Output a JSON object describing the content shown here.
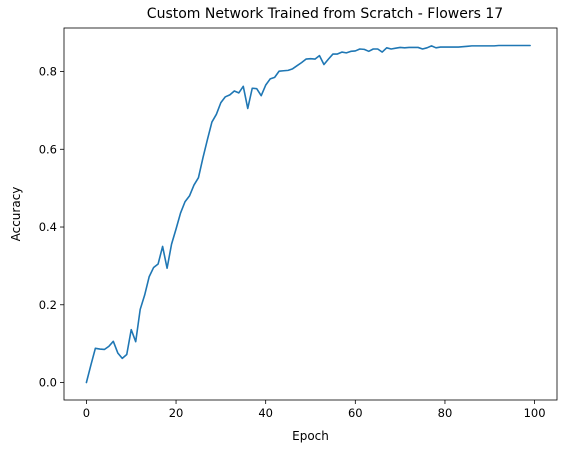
{
  "chart_data": {
    "type": "line",
    "title": "Custom Network Trained from Scratch - Flowers 17",
    "xlabel": "Epoch",
    "ylabel": "Accuracy",
    "xlim": [
      -5,
      105
    ],
    "ylim": [
      -0.045,
      0.912
    ],
    "xticks": [
      0,
      20,
      40,
      60,
      80,
      100
    ],
    "xtick_labels": [
      "0",
      "20",
      "40",
      "60",
      "80",
      "100"
    ],
    "yticks": [
      0.0,
      0.2,
      0.4,
      0.6,
      0.8
    ],
    "ytick_labels": [
      "0.0",
      "0.2",
      "0.4",
      "0.6",
      "0.8"
    ],
    "grid": false,
    "series": [
      {
        "color": "#1f77b4",
        "x": [
          0,
          1,
          2,
          3,
          4,
          5,
          6,
          7,
          8,
          9,
          10,
          11,
          12,
          13,
          14,
          15,
          16,
          17,
          18,
          19,
          20,
          21,
          22,
          23,
          24,
          25,
          26,
          27,
          28,
          29,
          30,
          31,
          32,
          33,
          34,
          35,
          36,
          37,
          38,
          39,
          40,
          41,
          42,
          43,
          44,
          45,
          46,
          47,
          48,
          49,
          50,
          51,
          52,
          53,
          54,
          55,
          56,
          57,
          58,
          59,
          60,
          61,
          62,
          63,
          64,
          65,
          66,
          67,
          68,
          69,
          70,
          71,
          72,
          73,
          74,
          75,
          76,
          77,
          78,
          79,
          80,
          81,
          82,
          83,
          84,
          85,
          86,
          87,
          88,
          89,
          90,
          91,
          92,
          93,
          94,
          95,
          96,
          97,
          98,
          99
        ],
        "y": [
          0.0,
          0.045,
          0.088,
          0.086,
          0.085,
          0.093,
          0.106,
          0.076,
          0.062,
          0.072,
          0.136,
          0.105,
          0.188,
          0.225,
          0.272,
          0.296,
          0.305,
          0.35,
          0.294,
          0.356,
          0.395,
          0.436,
          0.465,
          0.48,
          0.508,
          0.527,
          0.578,
          0.625,
          0.67,
          0.69,
          0.72,
          0.735,
          0.74,
          0.75,
          0.745,
          0.762,
          0.705,
          0.757,
          0.756,
          0.738,
          0.765,
          0.781,
          0.785,
          0.801,
          0.802,
          0.803,
          0.807,
          0.815,
          0.823,
          0.832,
          0.833,
          0.832,
          0.841,
          0.818,
          0.832,
          0.845,
          0.845,
          0.85,
          0.848,
          0.852,
          0.853,
          0.858,
          0.857,
          0.852,
          0.858,
          0.858,
          0.85,
          0.861,
          0.858,
          0.86,
          0.862,
          0.861,
          0.862,
          0.862,
          0.862,
          0.858,
          0.861,
          0.866,
          0.861,
          0.863,
          0.863,
          0.863,
          0.863,
          0.863,
          0.864,
          0.865,
          0.866,
          0.866,
          0.866,
          0.866,
          0.866,
          0.866,
          0.867,
          0.867,
          0.867,
          0.867,
          0.867,
          0.867,
          0.867,
          0.867
        ]
      }
    ]
  }
}
